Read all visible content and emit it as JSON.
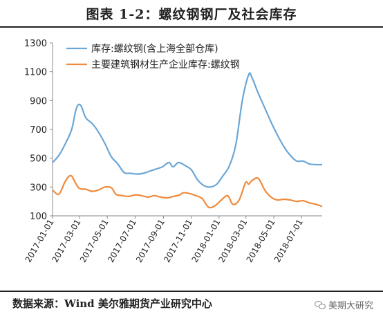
{
  "title": "图表 1-2：螺纹钢钢厂及社会库存",
  "source": "数据来源：Wind  美尔雅期货产业研究中心",
  "watermark": "美期大研究",
  "chart_data": {
    "type": "line",
    "ylim": [
      100,
      1300
    ],
    "yticks": [
      100,
      300,
      500,
      700,
      900,
      1100,
      1300
    ],
    "xlim": [
      "2017-01-01",
      "2018-08-15"
    ],
    "xticks": [
      "2017-01-01",
      "2017-03-01",
      "2017-05-01",
      "2017-07-01",
      "2017-09-01",
      "2017-11-01",
      "2018-01-01",
      "2018-03-01",
      "2018-05-01",
      "2018-07-01"
    ],
    "grid": false,
    "legend_position": "top-left",
    "colors": {
      "series1": "#6aa6d6",
      "series2": "#f08a3c"
    },
    "series": [
      {
        "name": "库存:螺纹钢(含上海全部仓库)",
        "points": [
          [
            "2017-01-01",
            470
          ],
          [
            "2017-01-15",
            520
          ],
          [
            "2017-01-29",
            600
          ],
          [
            "2017-02-12",
            700
          ],
          [
            "2017-02-20",
            820
          ],
          [
            "2017-02-26",
            870
          ],
          [
            "2017-03-05",
            860
          ],
          [
            "2017-03-15",
            780
          ],
          [
            "2017-03-29",
            740
          ],
          [
            "2017-04-12",
            680
          ],
          [
            "2017-04-26",
            600
          ],
          [
            "2017-05-10",
            510
          ],
          [
            "2017-05-24",
            460
          ],
          [
            "2017-06-07",
            400
          ],
          [
            "2017-06-21",
            395
          ],
          [
            "2017-07-05",
            390
          ],
          [
            "2017-07-19",
            395
          ],
          [
            "2017-08-02",
            410
          ],
          [
            "2017-08-16",
            425
          ],
          [
            "2017-08-30",
            440
          ],
          [
            "2017-09-13",
            470
          ],
          [
            "2017-09-22",
            440
          ],
          [
            "2017-10-04",
            470
          ],
          [
            "2017-10-18",
            450
          ],
          [
            "2017-11-01",
            420
          ],
          [
            "2017-11-15",
            350
          ],
          [
            "2017-11-29",
            310
          ],
          [
            "2017-12-13",
            300
          ],
          [
            "2017-12-27",
            320
          ],
          [
            "2018-01-10",
            380
          ],
          [
            "2018-01-24",
            450
          ],
          [
            "2018-02-07",
            600
          ],
          [
            "2018-02-21",
            900
          ],
          [
            "2018-03-07",
            1080
          ],
          [
            "2018-03-14",
            1060
          ],
          [
            "2018-03-28",
            950
          ],
          [
            "2018-04-11",
            850
          ],
          [
            "2018-04-25",
            750
          ],
          [
            "2018-05-09",
            660
          ],
          [
            "2018-05-23",
            580
          ],
          [
            "2018-06-06",
            520
          ],
          [
            "2018-06-20",
            480
          ],
          [
            "2018-07-04",
            480
          ],
          [
            "2018-07-18",
            460
          ],
          [
            "2018-08-01",
            455
          ],
          [
            "2018-08-15",
            455
          ]
        ]
      },
      {
        "name": "主要建筑钢材生产企业库存:螺纹钢",
        "points": [
          [
            "2017-01-01",
            280
          ],
          [
            "2017-01-15",
            250
          ],
          [
            "2017-01-29",
            340
          ],
          [
            "2017-02-10",
            380
          ],
          [
            "2017-02-20",
            330
          ],
          [
            "2017-03-01",
            290
          ],
          [
            "2017-03-15",
            285
          ],
          [
            "2017-03-29",
            270
          ],
          [
            "2017-04-12",
            280
          ],
          [
            "2017-04-26",
            300
          ],
          [
            "2017-05-10",
            295
          ],
          [
            "2017-05-20",
            250
          ],
          [
            "2017-06-03",
            240
          ],
          [
            "2017-06-17",
            235
          ],
          [
            "2017-07-01",
            245
          ],
          [
            "2017-07-15",
            240
          ],
          [
            "2017-07-29",
            230
          ],
          [
            "2017-08-12",
            240
          ],
          [
            "2017-08-26",
            230
          ],
          [
            "2017-09-09",
            225
          ],
          [
            "2017-09-23",
            235
          ],
          [
            "2017-10-07",
            245
          ],
          [
            "2017-10-14",
            260
          ],
          [
            "2017-10-28",
            255
          ],
          [
            "2017-11-11",
            240
          ],
          [
            "2017-11-25",
            220
          ],
          [
            "2017-12-09",
            160
          ],
          [
            "2017-12-23",
            170
          ],
          [
            "2018-01-06",
            210
          ],
          [
            "2018-01-20",
            240
          ],
          [
            "2018-01-31",
            180
          ],
          [
            "2018-02-14",
            210
          ],
          [
            "2018-02-28",
            330
          ],
          [
            "2018-03-07",
            320
          ],
          [
            "2018-03-14",
            345
          ],
          [
            "2018-03-28",
            360
          ],
          [
            "2018-04-11",
            280
          ],
          [
            "2018-04-25",
            230
          ],
          [
            "2018-05-09",
            210
          ],
          [
            "2018-05-23",
            215
          ],
          [
            "2018-06-06",
            210
          ],
          [
            "2018-06-20",
            200
          ],
          [
            "2018-07-04",
            205
          ],
          [
            "2018-07-18",
            190
          ],
          [
            "2018-08-01",
            180
          ],
          [
            "2018-08-15",
            165
          ]
        ]
      }
    ]
  }
}
